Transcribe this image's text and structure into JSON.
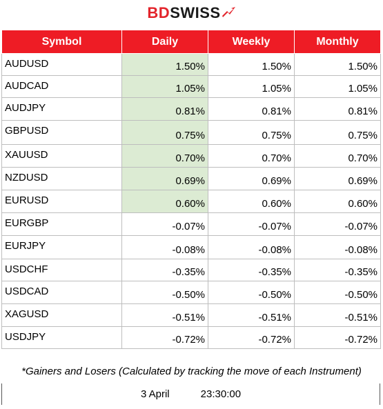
{
  "brand": {
    "part1": "BD",
    "part2": "SWISS"
  },
  "table": {
    "headers": [
      "Symbol",
      "Daily",
      "Weekly",
      "Monthly"
    ],
    "rows": [
      {
        "symbol": "AUDUSD",
        "daily": "1.50%",
        "weekly": "1.50%",
        "monthly": "1.50%"
      },
      {
        "symbol": "AUDCAD",
        "daily": "1.05%",
        "weekly": "1.05%",
        "monthly": "1.05%"
      },
      {
        "symbol": "AUDJPY",
        "daily": "0.81%",
        "weekly": "0.81%",
        "monthly": "0.81%"
      },
      {
        "symbol": "GBPUSD",
        "daily": "0.75%",
        "weekly": "0.75%",
        "monthly": "0.75%"
      },
      {
        "symbol": "XAUUSD",
        "daily": "0.70%",
        "weekly": "0.70%",
        "monthly": "0.70%"
      },
      {
        "symbol": "NZDUSD",
        "daily": "0.69%",
        "weekly": "0.69%",
        "monthly": "0.69%"
      },
      {
        "symbol": "EURUSD",
        "daily": "0.60%",
        "weekly": "0.60%",
        "monthly": "0.60%"
      },
      {
        "symbol": "EURGBP",
        "daily": "-0.07%",
        "weekly": "-0.07%",
        "monthly": "-0.07%"
      },
      {
        "symbol": "EURJPY",
        "daily": "-0.08%",
        "weekly": "-0.08%",
        "monthly": "-0.08%"
      },
      {
        "symbol": "USDCHF",
        "daily": "-0.35%",
        "weekly": "-0.35%",
        "monthly": "-0.35%"
      },
      {
        "symbol": "USDCAD",
        "daily": "-0.50%",
        "weekly": "-0.50%",
        "monthly": "-0.50%"
      },
      {
        "symbol": "XAGUSD",
        "daily": "-0.51%",
        "weekly": "-0.51%",
        "monthly": "-0.51%"
      },
      {
        "symbol": "USDJPY",
        "daily": "-0.72%",
        "weekly": "-0.72%",
        "monthly": "-0.72%"
      }
    ]
  },
  "footnote": "*Gainers and Losers (Calculated by tracking the move of each Instrument)",
  "timestamp": {
    "date": "3 April",
    "time": "23:30:00"
  },
  "colors": {
    "header_bg": "#ee1c25",
    "positive_daily_bg": "#dcebd3",
    "brand_red": "#e3242b"
  },
  "icons": {
    "logo_mark": "swiss-arrow-icon"
  }
}
